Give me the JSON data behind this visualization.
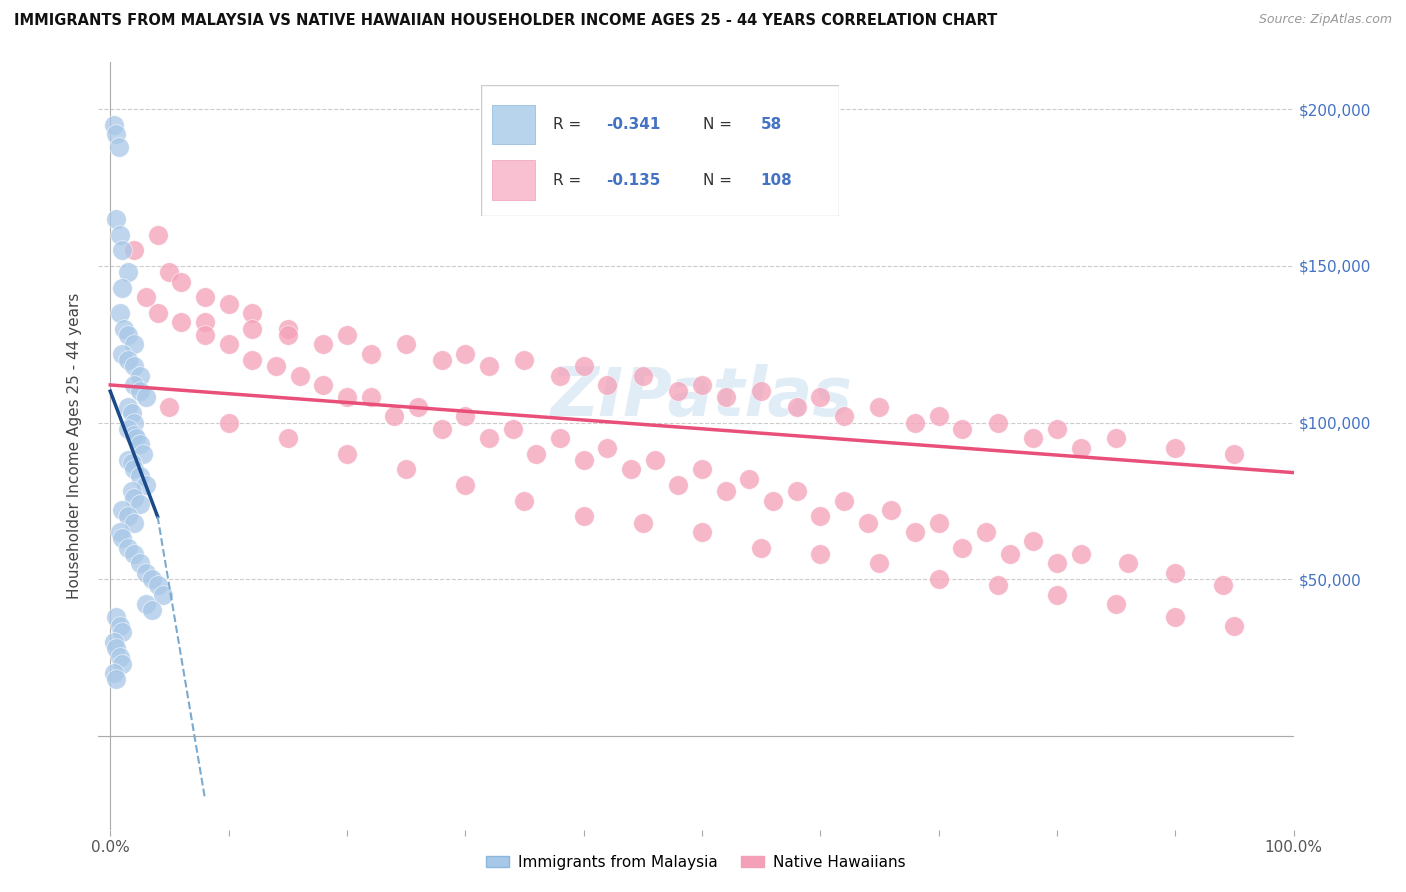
{
  "title": "IMMIGRANTS FROM MALAYSIA VS NATIVE HAWAIIAN HOUSEHOLDER INCOME AGES 25 - 44 YEARS CORRELATION CHART",
  "source": "Source: ZipAtlas.com",
  "ylabel": "Householder Income Ages 25 - 44 years",
  "yticks": [
    0,
    50000,
    100000,
    150000,
    200000
  ],
  "ytick_labels": [
    "",
    "$50,000",
    "$100,000",
    "$150,000",
    "$200,000"
  ],
  "blue_color": "#a8c8e8",
  "pink_color": "#f4a0b8",
  "blue_line_color": "#1a4a8a",
  "pink_line_color": "#e8507a",
  "blue_line_color_dash": "#7aaad0",
  "legend_label1": "Immigrants from Malaysia",
  "legend_label2": "Native Hawaiians",
  "watermark": "ZIPatlas",
  "blue_scatter_x": [
    0.3,
    0.5,
    0.7,
    0.5,
    0.8,
    1.0,
    1.5,
    1.0,
    0.8,
    1.2,
    1.5,
    2.0,
    1.0,
    1.5,
    2.0,
    2.5,
    2.0,
    2.5,
    3.0,
    1.5,
    1.8,
    2.0,
    1.5,
    2.0,
    2.2,
    2.5,
    2.8,
    1.5,
    1.8,
    2.0,
    2.5,
    3.0,
    1.8,
    2.0,
    2.5,
    1.0,
    1.5,
    2.0,
    0.8,
    1.0,
    1.5,
    2.0,
    2.5,
    3.0,
    3.5,
    4.0,
    4.5,
    3.0,
    3.5,
    0.5,
    0.8,
    1.0,
    0.3,
    0.5,
    0.8,
    1.0,
    0.3,
    0.5
  ],
  "blue_scatter_y": [
    195000,
    192000,
    188000,
    165000,
    160000,
    155000,
    148000,
    143000,
    135000,
    130000,
    128000,
    125000,
    122000,
    120000,
    118000,
    115000,
    112000,
    110000,
    108000,
    105000,
    103000,
    100000,
    98000,
    96000,
    95000,
    93000,
    90000,
    88000,
    87000,
    85000,
    83000,
    80000,
    78000,
    76000,
    74000,
    72000,
    70000,
    68000,
    65000,
    63000,
    60000,
    58000,
    55000,
    52000,
    50000,
    48000,
    45000,
    42000,
    40000,
    38000,
    35000,
    33000,
    30000,
    28000,
    25000,
    23000,
    20000,
    18000
  ],
  "pink_scatter_x": [
    2.0,
    5.0,
    8.0,
    4.0,
    12.0,
    6.0,
    15.0,
    10.0,
    20.0,
    8.0,
    25.0,
    15.0,
    30.0,
    12.0,
    18.0,
    35.0,
    22.0,
    40.0,
    28.0,
    45.0,
    32.0,
    50.0,
    38.0,
    55.0,
    42.0,
    60.0,
    48.0,
    65.0,
    52.0,
    70.0,
    58.0,
    75.0,
    62.0,
    80.0,
    68.0,
    85.0,
    72.0,
    90.0,
    78.0,
    95.0,
    82.0,
    3.0,
    6.0,
    10.0,
    14.0,
    18.0,
    22.0,
    26.0,
    30.0,
    34.0,
    38.0,
    42.0,
    46.0,
    50.0,
    54.0,
    58.0,
    62.0,
    66.0,
    70.0,
    74.0,
    78.0,
    82.0,
    86.0,
    90.0,
    94.0,
    4.0,
    8.0,
    12.0,
    16.0,
    20.0,
    24.0,
    28.0,
    32.0,
    36.0,
    40.0,
    44.0,
    48.0,
    52.0,
    56.0,
    60.0,
    64.0,
    68.0,
    72.0,
    76.0,
    80.0,
    5.0,
    10.0,
    15.0,
    20.0,
    25.0,
    30.0,
    35.0,
    40.0,
    45.0,
    50.0,
    55.0,
    60.0,
    65.0,
    70.0,
    75.0,
    80.0,
    85.0,
    90.0,
    95.0
  ],
  "pink_scatter_y": [
    155000,
    148000,
    140000,
    160000,
    135000,
    145000,
    130000,
    138000,
    128000,
    132000,
    125000,
    128000,
    122000,
    130000,
    125000,
    120000,
    122000,
    118000,
    120000,
    115000,
    118000,
    112000,
    115000,
    110000,
    112000,
    108000,
    110000,
    105000,
    108000,
    102000,
    105000,
    100000,
    102000,
    98000,
    100000,
    95000,
    98000,
    92000,
    95000,
    90000,
    92000,
    140000,
    132000,
    125000,
    118000,
    112000,
    108000,
    105000,
    102000,
    98000,
    95000,
    92000,
    88000,
    85000,
    82000,
    78000,
    75000,
    72000,
    68000,
    65000,
    62000,
    58000,
    55000,
    52000,
    48000,
    135000,
    128000,
    120000,
    115000,
    108000,
    102000,
    98000,
    95000,
    90000,
    88000,
    85000,
    80000,
    78000,
    75000,
    70000,
    68000,
    65000,
    60000,
    58000,
    55000,
    105000,
    100000,
    95000,
    90000,
    85000,
    80000,
    75000,
    70000,
    68000,
    65000,
    60000,
    58000,
    55000,
    50000,
    48000,
    45000,
    42000,
    38000,
    35000
  ],
  "blue_line_x0": 0.0,
  "blue_line_y0": 110000,
  "blue_line_x1": 4.0,
  "blue_line_y1": 70000,
  "blue_dash_x0": 4.0,
  "blue_dash_y0": 70000,
  "blue_dash_x1": 8.0,
  "blue_dash_y1": -20000,
  "pink_line_x0": 0.0,
  "pink_line_y0": 112000,
  "pink_line_x1": 100.0,
  "pink_line_y1": 84000,
  "xlim": [
    -1,
    100
  ],
  "ylim": [
    -30000,
    215000
  ]
}
